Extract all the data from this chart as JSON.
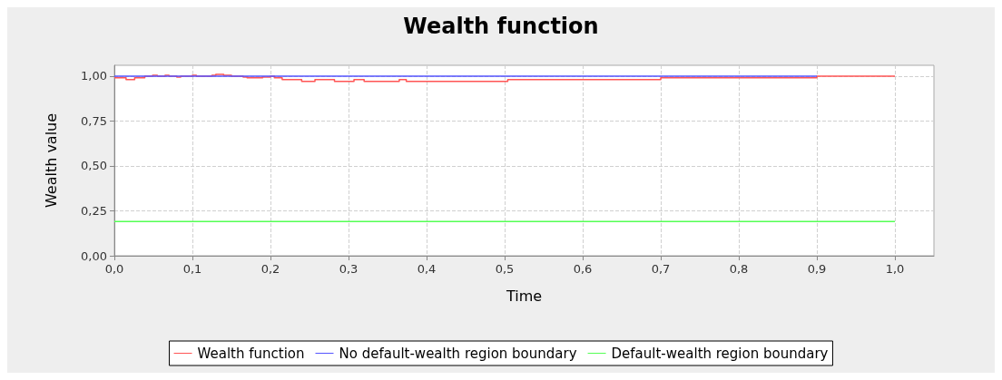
{
  "chart_data": {
    "type": "step",
    "title": "Wealth function",
    "xlabel": "Time",
    "ylabel": "Wealth value",
    "xlim": [
      0,
      1.05
    ],
    "ylim": [
      0,
      1.06
    ],
    "xticks": [
      {
        "value": 0,
        "label": "0,0"
      },
      {
        "value": 0.1,
        "label": "0,1"
      },
      {
        "value": 0.2,
        "label": "0,2"
      },
      {
        "value": 0.3,
        "label": "0,3"
      },
      {
        "value": 0.4,
        "label": "0,4"
      },
      {
        "value": 0.5,
        "label": "0,5"
      },
      {
        "value": 0.6,
        "label": "0,6"
      },
      {
        "value": 0.7,
        "label": "0,7"
      },
      {
        "value": 0.8,
        "label": "0,8"
      },
      {
        "value": 0.9,
        "label": "0,9"
      },
      {
        "value": 1,
        "label": "1,0"
      }
    ],
    "yticks": [
      {
        "value": 0,
        "label": "0,00"
      },
      {
        "value": 0.25,
        "label": "0,25"
      },
      {
        "value": 0.5,
        "label": "0,50"
      },
      {
        "value": 0.75,
        "label": "0,75"
      },
      {
        "value": 1,
        "label": "1,00"
      }
    ],
    "grid": true,
    "legend": "bottom",
    "marker": "none",
    "line_style": "solid",
    "series": [
      {
        "name": "Wealth function",
        "color": "#ff5555",
        "x": [
          0,
          0.015,
          0.026,
          0.039,
          0.049,
          0.055,
          0.065,
          0.07,
          0.08,
          0.085,
          0.1,
          0.105,
          0.125,
          0.13,
          0.14,
          0.15,
          0.165,
          0.17,
          0.19,
          0.2,
          0.205,
          0.215,
          0.24,
          0.257,
          0.282,
          0.307,
          0.32,
          0.365,
          0.374,
          0.504,
          0.7,
          0.9,
          1.0
        ],
        "values": [
          0.99,
          0.98,
          0.99,
          1.0,
          1.005,
          1.0,
          1.005,
          1.0,
          0.995,
          1.0,
          1.005,
          1.0,
          1.005,
          1.01,
          1.005,
          1.0,
          0.995,
          0.99,
          0.995,
          1.0,
          0.99,
          0.98,
          0.97,
          0.98,
          0.97,
          0.98,
          0.97,
          0.98,
          0.97,
          0.98,
          0.99,
          1.0,
          1.0
        ]
      },
      {
        "name": "No default-wealth region boundary",
        "color": "#5555ff",
        "x": [
          0,
          0.9
        ],
        "values": [
          1,
          1
        ]
      },
      {
        "name": "Default-wealth region boundary",
        "color": "#55ff55",
        "x": [
          0,
          1
        ],
        "values": [
          0.19,
          0.19
        ]
      }
    ]
  }
}
